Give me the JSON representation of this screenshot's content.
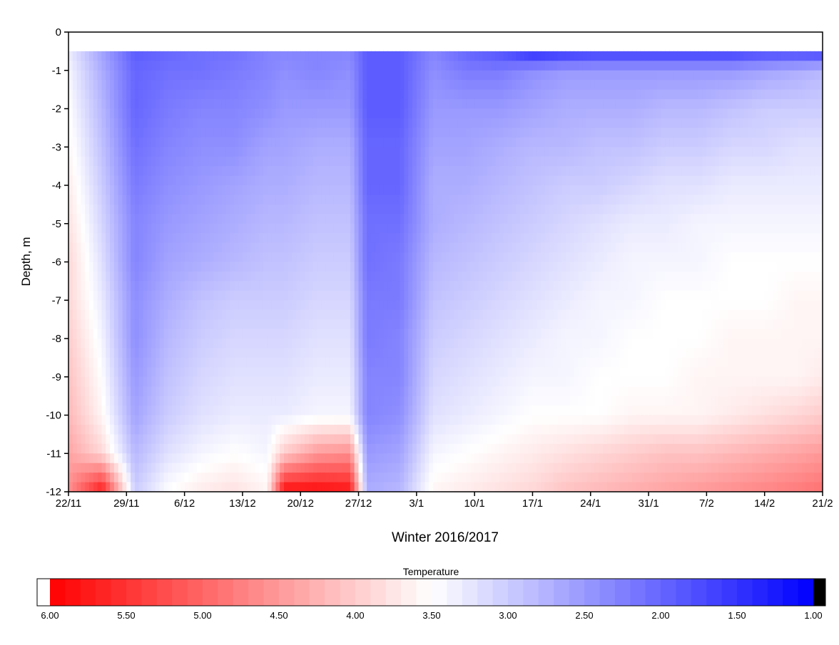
{
  "chart_data": {
    "type": "heatmap",
    "title": "",
    "xlabel": "Winter 2016/2017",
    "ylabel": "Depth, m",
    "x_ticks": [
      "22/11",
      "29/11",
      "6/12",
      "13/12",
      "20/12",
      "27/12",
      "3/1",
      "10/1",
      "17/1",
      "24/1",
      "31/1",
      "7/2",
      "14/2",
      "21/2"
    ],
    "y_ticks": [
      "0",
      "-1",
      "-2",
      "-3",
      "-4",
      "-5",
      "-6",
      "-7",
      "-8",
      "-9",
      "-10",
      "-11",
      "-12"
    ],
    "ylim": [
      -12,
      0
    ],
    "xlim_days": [
      0,
      91
    ],
    "colorbar": {
      "title": "Temperature",
      "ticks": [
        "6.00",
        "5.50",
        "5.00",
        "4.50",
        "4.00",
        "3.50",
        "3.00",
        "2.50",
        "2.00",
        "1.50",
        "1.00"
      ],
      "range": [
        6.0,
        1.0
      ],
      "color_warm": "#ff0000",
      "color_mid": "#ffffff",
      "color_cold": "#0000ff"
    },
    "field_rows": [
      {
        "depth": -0.5,
        "values": [
          3.3,
          2.6,
          1.9,
          2.0,
          2.1,
          2.1,
          2.3,
          2.3,
          2.3,
          2.3,
          1.9,
          1.9,
          2.3,
          2.0,
          1.8,
          1.4,
          1.5,
          1.6,
          1.6,
          1.6,
          1.6,
          1.6,
          1.7,
          1.7,
          1.6
        ]
      },
      {
        "depth": -1.0,
        "values": [
          3.4,
          2.7,
          2.0,
          2.1,
          2.1,
          2.2,
          2.3,
          2.4,
          2.3,
          2.4,
          1.9,
          1.9,
          2.4,
          2.2,
          2.2,
          2.4,
          2.5,
          2.5,
          2.5,
          2.5,
          2.5,
          2.5,
          2.6,
          2.7,
          2.8
        ]
      },
      {
        "depth": -2.0,
        "values": [
          3.5,
          2.8,
          2.0,
          2.2,
          2.3,
          2.3,
          2.4,
          2.5,
          2.5,
          2.5,
          1.9,
          1.9,
          2.5,
          2.5,
          2.5,
          2.6,
          2.7,
          2.7,
          2.7,
          2.8,
          2.8,
          2.9,
          3.0,
          3.0,
          3.0
        ]
      },
      {
        "depth": -3.0,
        "values": [
          3.6,
          2.9,
          2.1,
          2.3,
          2.4,
          2.4,
          2.6,
          2.6,
          2.7,
          2.7,
          2.0,
          2.0,
          2.6,
          2.6,
          2.7,
          2.8,
          2.8,
          2.9,
          2.9,
          3.0,
          3.0,
          3.1,
          3.1,
          3.2,
          3.2
        ]
      },
      {
        "depth": -4.0,
        "values": [
          3.7,
          3.0,
          2.2,
          2.4,
          2.5,
          2.6,
          2.7,
          2.7,
          2.8,
          2.8,
          2.0,
          2.0,
          2.7,
          2.7,
          2.8,
          2.9,
          3.0,
          3.0,
          3.1,
          3.2,
          3.2,
          3.3,
          3.3,
          3.3,
          3.3
        ]
      },
      {
        "depth": -5.0,
        "values": [
          3.8,
          3.1,
          2.3,
          2.5,
          2.6,
          2.7,
          2.8,
          2.8,
          2.9,
          2.9,
          2.1,
          2.1,
          2.7,
          2.8,
          2.9,
          3.0,
          3.1,
          3.2,
          3.3,
          3.3,
          3.4,
          3.4,
          3.4,
          3.4,
          3.4
        ]
      },
      {
        "depth": -6.0,
        "values": [
          3.9,
          3.2,
          2.3,
          2.6,
          2.7,
          2.8,
          2.9,
          2.9,
          3.0,
          3.0,
          2.1,
          2.2,
          2.8,
          2.9,
          3.0,
          3.1,
          3.2,
          3.3,
          3.4,
          3.4,
          3.4,
          3.5,
          3.5,
          3.5,
          3.5
        ]
      },
      {
        "depth": -7.0,
        "values": [
          3.9,
          3.3,
          2.4,
          2.7,
          2.9,
          3.0,
          3.0,
          3.0,
          3.1,
          3.1,
          2.2,
          2.2,
          2.9,
          3.0,
          3.1,
          3.2,
          3.3,
          3.4,
          3.4,
          3.5,
          3.5,
          3.5,
          3.5,
          3.6,
          3.6
        ]
      },
      {
        "depth": -8.0,
        "values": [
          4.0,
          3.4,
          2.4,
          2.8,
          3.0,
          3.1,
          3.1,
          3.1,
          3.2,
          3.2,
          2.2,
          2.3,
          3.0,
          3.1,
          3.2,
          3.3,
          3.4,
          3.4,
          3.5,
          3.5,
          3.5,
          3.6,
          3.6,
          3.6,
          3.6
        ]
      },
      {
        "depth": -9.0,
        "values": [
          4.1,
          3.5,
          2.5,
          2.9,
          3.1,
          3.2,
          3.2,
          3.2,
          3.3,
          3.3,
          2.3,
          2.3,
          3.1,
          3.2,
          3.3,
          3.4,
          3.4,
          3.5,
          3.5,
          3.5,
          3.6,
          3.6,
          3.6,
          3.6,
          3.7
        ]
      },
      {
        "depth": -10.0,
        "values": [
          4.2,
          3.6,
          2.6,
          3.0,
          3.2,
          3.3,
          3.3,
          3.3,
          3.4,
          3.4,
          2.3,
          2.4,
          3.2,
          3.3,
          3.4,
          3.5,
          3.5,
          3.5,
          3.6,
          3.6,
          3.6,
          3.7,
          3.8,
          3.9,
          4.0
        ]
      },
      {
        "depth": -11.0,
        "values": [
          4.4,
          3.9,
          2.8,
          3.2,
          3.4,
          3.5,
          3.4,
          4.0,
          4.5,
          4.6,
          2.5,
          2.6,
          3.4,
          3.5,
          3.6,
          3.7,
          3.8,
          3.9,
          4.0,
          4.1,
          4.1,
          4.2,
          4.3,
          4.4,
          4.5
        ]
      },
      {
        "depth": -12.0,
        "values": [
          4.6,
          5.8,
          3.0,
          3.5,
          3.7,
          3.8,
          3.6,
          5.9,
          5.9,
          5.8,
          2.7,
          2.8,
          3.6,
          3.7,
          3.8,
          3.9,
          4.1,
          4.2,
          4.3,
          4.4,
          4.5,
          4.6,
          4.7,
          4.8,
          4.9
        ]
      }
    ],
    "field_days": [
      0,
      4,
      8,
      12,
      16,
      20,
      24,
      26,
      30,
      34,
      36,
      40,
      44,
      48,
      52,
      56,
      60,
      64,
      68,
      72,
      76,
      80,
      84,
      88,
      91
    ]
  }
}
